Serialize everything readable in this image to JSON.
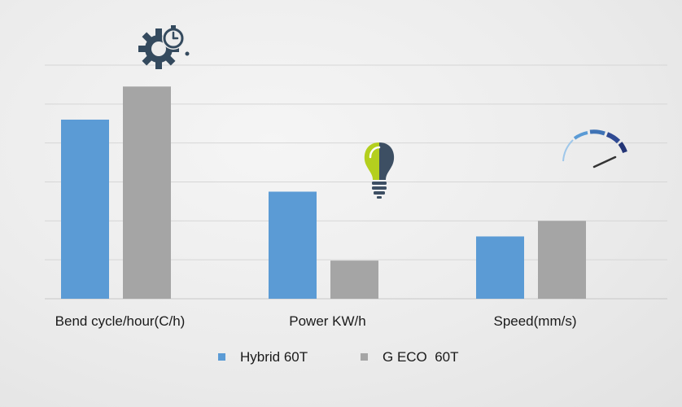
{
  "chart_data": {
    "type": "bar",
    "title": "",
    "xlabel": "",
    "ylabel": "",
    "categories": [
      "Bend cycle/hour(C/h)",
      "Power KW/h",
      "Speed(mm/s)"
    ],
    "series": [
      {
        "name": "Hybrid 60T",
        "values": [
          4.6,
          2.75,
          1.6
        ],
        "color": "#5b9bd5"
      },
      {
        "name": "G ECO  60T",
        "values": [
          5.45,
          0.98,
          2.0
        ],
        "color": "#a5a5a5"
      }
    ],
    "ylim": [
      0,
      6
    ],
    "grid": true,
    "legend": "bottom",
    "icons": [
      "gear-clock-icon",
      "lightbulb-icon",
      "speedometer-icon"
    ]
  }
}
